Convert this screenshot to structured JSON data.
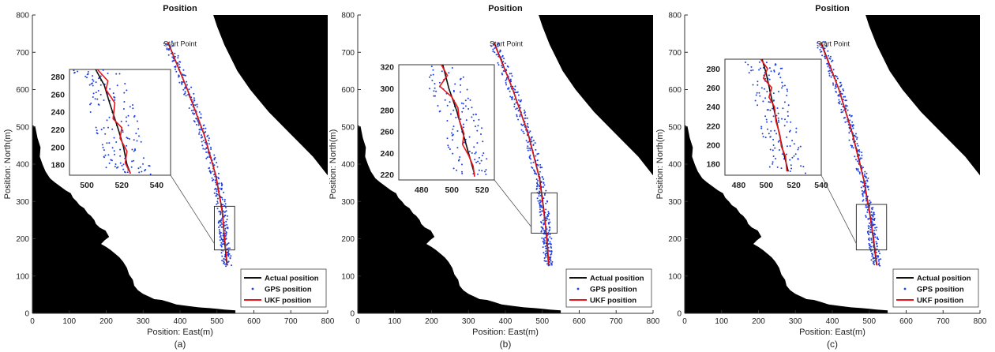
{
  "colors": {
    "actual": "#111111",
    "gps": "#1f3fe0",
    "ukf": "#e8141b",
    "land": "#000000",
    "axis": "#333333"
  },
  "chart_data": [
    {
      "type": "line",
      "title": "Position",
      "caption": "(a)",
      "xlabel": "Position: East(m)",
      "ylabel": "Position: North(m)",
      "xlim": [
        0,
        800
      ],
      "ylim": [
        0,
        800
      ],
      "xticks": [
        0,
        100,
        200,
        300,
        400,
        500,
        600,
        700,
        800
      ],
      "yticks": [
        0,
        100,
        200,
        300,
        400,
        500,
        600,
        700,
        800
      ],
      "start_label": "Start Point",
      "legend": [
        "Actual position",
        "GPS position",
        "UKF position"
      ],
      "legend_position": "bottom-right",
      "actual": [
        [
          368,
          725
        ],
        [
          420,
          600
        ],
        [
          465,
          480
        ],
        [
          497,
          370
        ],
        [
          515,
          270
        ],
        [
          520,
          200
        ],
        [
          527,
          130
        ]
      ],
      "ukf": [
        [
          366,
          728
        ],
        [
          418,
          605
        ],
        [
          463,
          485
        ],
        [
          496,
          372
        ],
        [
          514,
          272
        ],
        [
          521,
          200
        ],
        [
          528,
          128
        ]
      ],
      "zoom_box": [
        493,
        170,
        548,
        287
      ],
      "inset": {
        "xlim": [
          490,
          548
        ],
        "ylim": [
          168,
          288
        ],
        "xticks": [
          500,
          520,
          540
        ],
        "yticks": [
          180,
          200,
          220,
          240,
          260,
          280
        ],
        "actual": [
          [
            505,
            288
          ],
          [
            510,
            270
          ],
          [
            513,
            250
          ],
          [
            518,
            220
          ],
          [
            521,
            200
          ],
          [
            523,
            180
          ],
          [
            525,
            170
          ]
        ],
        "ukf": [
          [
            506,
            288
          ],
          [
            512,
            275
          ],
          [
            511,
            265
          ],
          [
            516,
            250
          ],
          [
            515,
            232
          ],
          [
            520,
            222
          ],
          [
            519,
            210
          ],
          [
            523,
            195
          ],
          [
            522,
            182
          ],
          [
            525,
            170
          ]
        ]
      }
    },
    {
      "type": "line",
      "title": "Position",
      "caption": "(b)",
      "xlabel": "Position: East(m)",
      "ylabel": "Position: North(m)",
      "xlim": [
        0,
        800
      ],
      "ylim": [
        0,
        800
      ],
      "xticks": [
        0,
        100,
        200,
        300,
        400,
        500,
        600,
        700,
        800
      ],
      "yticks": [
        0,
        100,
        200,
        300,
        400,
        500,
        600,
        700,
        800
      ],
      "start_label": "Start Point",
      "legend": [
        "Actual position",
        "GPS position",
        "UKF position"
      ],
      "legend_position": "bottom-right",
      "actual": [
        [
          370,
          725
        ],
        [
          420,
          600
        ],
        [
          462,
          480
        ],
        [
          493,
          360
        ],
        [
          505,
          270
        ],
        [
          512,
          200
        ],
        [
          517,
          130
        ]
      ],
      "ukf": [
        [
          368,
          728
        ],
        [
          419,
          603
        ],
        [
          461,
          483
        ],
        [
          492,
          362
        ],
        [
          504,
          272
        ],
        [
          513,
          200
        ],
        [
          518,
          128
        ]
      ],
      "zoom_box": [
        470,
        215,
        540,
        323
      ],
      "inset": {
        "xlim": [
          465,
          528
        ],
        "ylim": [
          215,
          322
        ],
        "xticks": [
          480,
          500,
          520
        ],
        "yticks": [
          220,
          240,
          260,
          280,
          300,
          320
        ],
        "actual": [
          [
            494,
            322
          ],
          [
            498,
            300
          ],
          [
            503,
            280
          ],
          [
            507,
            260
          ],
          [
            511,
            240
          ],
          [
            515,
            220
          ]
        ],
        "ukf": [
          [
            493,
            322
          ],
          [
            497,
            312
          ],
          [
            492,
            302
          ],
          [
            500,
            292
          ],
          [
            504,
            282
          ],
          [
            505,
            270
          ],
          [
            508,
            258
          ],
          [
            507,
            248
          ],
          [
            511,
            238
          ],
          [
            514,
            228
          ],
          [
            515,
            218
          ]
        ]
      }
    },
    {
      "type": "line",
      "title": "Position",
      "caption": "(c)",
      "xlabel": "Position: East(m)",
      "ylabel": "Position: North(m)",
      "xlim": [
        0,
        800
      ],
      "ylim": [
        0,
        800
      ],
      "xticks": [
        0,
        100,
        200,
        300,
        400,
        500,
        600,
        700,
        800
      ],
      "yticks": [
        0,
        100,
        200,
        300,
        400,
        500,
        600,
        700,
        800
      ],
      "start_label": "Start Point",
      "legend": [
        "Actual position",
        "GPS position",
        "UKF position"
      ],
      "legend_position": "bottom-right",
      "actual": [
        [
          370,
          725
        ],
        [
          418,
          600
        ],
        [
          455,
          480
        ],
        [
          485,
          360
        ],
        [
          502,
          265
        ],
        [
          511,
          200
        ],
        [
          520,
          130
        ]
      ],
      "ukf": [
        [
          368,
          727
        ],
        [
          417,
          603
        ],
        [
          454,
          482
        ],
        [
          484,
          362
        ],
        [
          501,
          267
        ],
        [
          512,
          200
        ],
        [
          521,
          128
        ]
      ],
      "zoom_box": [
        465,
        170,
        547,
        292
      ],
      "inset": {
        "xlim": [
          470,
          540
        ],
        "ylim": [
          168,
          290
        ],
        "xticks": [
          480,
          500,
          520,
          540
        ],
        "yticks": [
          180,
          200,
          220,
          240,
          260,
          280
        ],
        "actual": [
          [
            497,
            290
          ],
          [
            500,
            275
          ],
          [
            503,
            255
          ],
          [
            506,
            235
          ],
          [
            509,
            215
          ],
          [
            512,
            195
          ],
          [
            516,
            172
          ]
        ],
        "ukf": [
          [
            496,
            290
          ],
          [
            501,
            280
          ],
          [
            498,
            270
          ],
          [
            504,
            260
          ],
          [
            502,
            250
          ],
          [
            506,
            240
          ],
          [
            507,
            225
          ],
          [
            510,
            210
          ],
          [
            511,
            198
          ],
          [
            514,
            188
          ],
          [
            515,
            172
          ]
        ]
      }
    }
  ]
}
